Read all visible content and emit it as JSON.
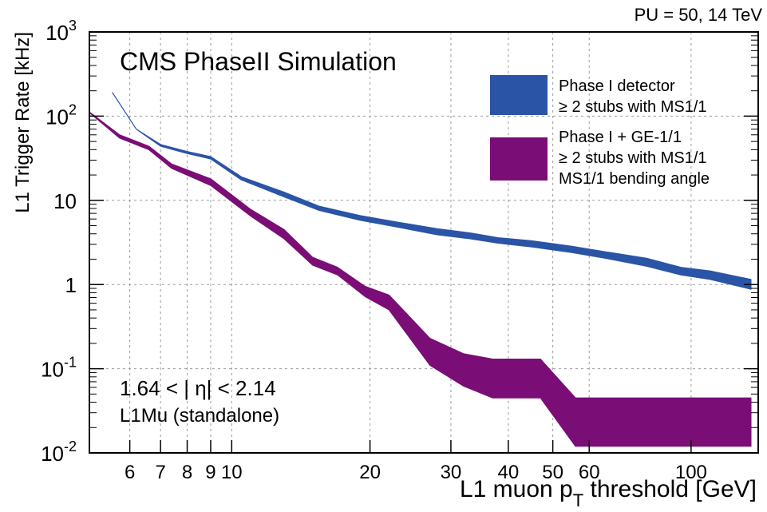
{
  "chart_data": {
    "type": "area",
    "header_right": "PU = 50, 14 TeV",
    "title": "CMS PhaseII Simulation",
    "xlabel_main": "L1 muon p",
    "xlabel_sub": "T",
    "xlabel_rest": " threshold [GeV]",
    "ylabel": "L1 Trigger Rate [kHz]",
    "x_scale": "log",
    "y_scale": "log",
    "xlim": [
      4.9,
      140
    ],
    "ylim": [
      0.01,
      1000
    ],
    "grid": true,
    "x_ticks": [
      {
        "value": 6,
        "label": "6"
      },
      {
        "value": 7,
        "label": "7"
      },
      {
        "value": 8,
        "label": "8"
      },
      {
        "value": 9,
        "label": "9"
      },
      {
        "value": 10,
        "label": "10"
      },
      {
        "value": 20,
        "label": "20"
      },
      {
        "value": 30,
        "label": "30"
      },
      {
        "value": 40,
        "label": "40"
      },
      {
        "value": 50,
        "label": "50"
      },
      {
        "value": 60,
        "label": "60"
      },
      {
        "value": 100,
        "label": "100"
      }
    ],
    "y_ticks": [
      {
        "value": 0.01,
        "base": "10",
        "exp": "-2",
        "label": ""
      },
      {
        "value": 0.1,
        "base": "10",
        "exp": "-1",
        "label": ""
      },
      {
        "value": 1,
        "base": "",
        "exp": "",
        "label": "1"
      },
      {
        "value": 10,
        "base": "",
        "exp": "",
        "label": "10"
      },
      {
        "value": 100,
        "base": "10",
        "exp": "2",
        "label": ""
      },
      {
        "value": 1000,
        "base": "10",
        "exp": "3",
        "label": ""
      }
    ],
    "legend_position": "top-right",
    "annotations": {
      "eta_range": "1.64 < | η| < 2.14",
      "trigger": "L1Mu (standalone)"
    },
    "series": [
      {
        "legend_lines": [
          "Phase I detector",
          "≥ 2 stubs with MS1/1"
        ],
        "color": "#2a54a5",
        "x": [
          5.5,
          6.2,
          7.0,
          8.0,
          9.0,
          10.5,
          13.0,
          15.5,
          19.0,
          23.0,
          28.0,
          33.0,
          38.0,
          45.0,
          55.0,
          65.0,
          80.0,
          95.0,
          110.0,
          135.0
        ],
        "y_low": [
          190,
          70,
          44,
          36,
          31,
          17.5,
          11,
          7.6,
          5.8,
          4.8,
          3.9,
          3.5,
          3.1,
          2.8,
          2.4,
          2.05,
          1.65,
          1.3,
          1.15,
          0.88
        ],
        "y_high": [
          190,
          70,
          46,
          38,
          33,
          19,
          12.5,
          8.5,
          6.6,
          5.5,
          4.6,
          4.1,
          3.6,
          3.3,
          2.85,
          2.45,
          2.05,
          1.6,
          1.45,
          1.15
        ]
      },
      {
        "legend_lines": [
          "Phase I + GE-1/1",
          "≥ 2 stubs with MS1/1",
          "MS1/1 bending angle"
        ],
        "color": "#7b0d76",
        "x": [
          4.9,
          5.7,
          6.6,
          7.4,
          9.0,
          11.0,
          13.0,
          15.0,
          17.0,
          19.5,
          22.0,
          27.0,
          32.0,
          37.0,
          47.0,
          56.0,
          65.0,
          80.0,
          110.0,
          135.0
        ],
        "y_low": [
          110,
          55,
          40,
          24,
          15,
          6.5,
          3.5,
          1.7,
          1.3,
          0.72,
          0.5,
          0.11,
          0.062,
          0.045,
          0.045,
          0.012,
          0.012,
          0.012,
          0.012,
          0.012
        ],
        "y_high": [
          112,
          60,
          44,
          27,
          18,
          7.8,
          4.5,
          2.1,
          1.6,
          0.95,
          0.75,
          0.23,
          0.15,
          0.13,
          0.13,
          0.045,
          0.045,
          0.045,
          0.045,
          0.045
        ]
      }
    ]
  }
}
